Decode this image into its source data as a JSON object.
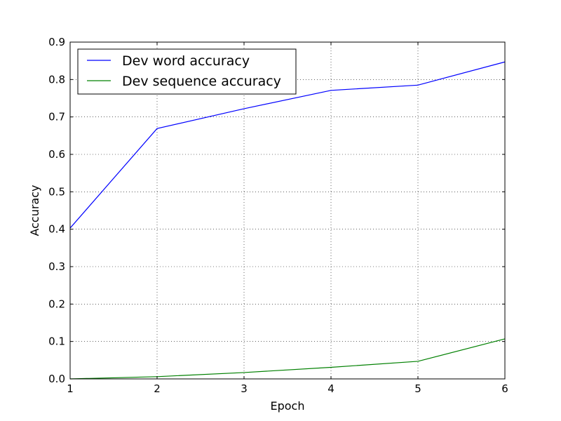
{
  "chart_data": {
    "type": "line",
    "title": "",
    "xlabel": "Epoch",
    "ylabel": "Accuracy",
    "x": [
      1,
      2,
      3,
      4,
      5,
      6
    ],
    "xlim": [
      1,
      6
    ],
    "ylim": [
      0.0,
      0.9
    ],
    "x_ticks": [
      "1",
      "2",
      "3",
      "4",
      "5",
      "6"
    ],
    "y_ticks": [
      "0.0",
      "0.1",
      "0.2",
      "0.3",
      "0.4",
      "0.5",
      "0.6",
      "0.7",
      "0.8",
      "0.9"
    ],
    "grid": true,
    "legend_position": "top-left",
    "series": [
      {
        "name": "Dev word accuracy",
        "color": "#0000ff",
        "values": [
          0.403,
          0.669,
          0.722,
          0.771,
          0.785,
          0.847
        ]
      },
      {
        "name": "Dev sequence accuracy",
        "color": "#008000",
        "values": [
          0.0,
          0.006,
          0.017,
          0.031,
          0.047,
          0.107
        ]
      }
    ]
  }
}
